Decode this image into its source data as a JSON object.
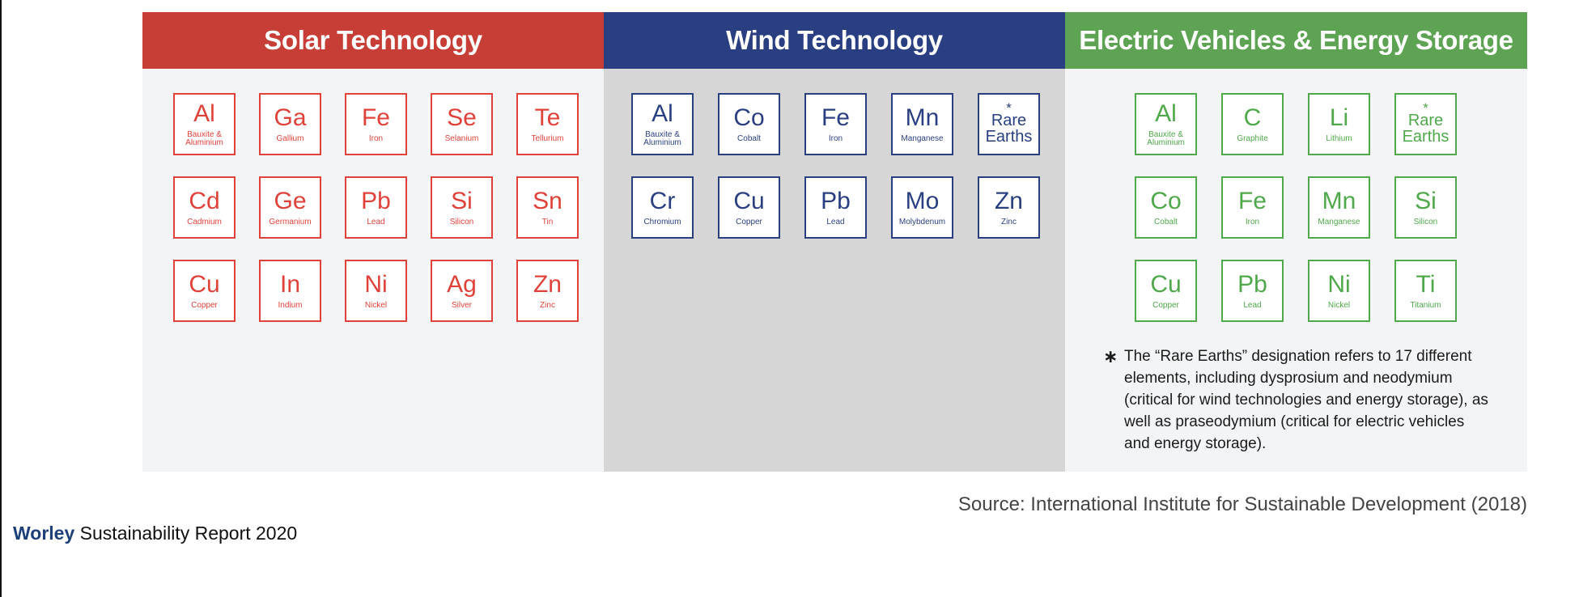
{
  "panels": {
    "solar": {
      "title": "Solar Technology",
      "color": "#c73e36",
      "elements": [
        {
          "symbol": "Al",
          "name": "Bauxite & Aluminium"
        },
        {
          "symbol": "Ga",
          "name": "Gallium"
        },
        {
          "symbol": "Fe",
          "name": "Iron"
        },
        {
          "symbol": "Se",
          "name": "Selanium"
        },
        {
          "symbol": "Te",
          "name": "Tellurium"
        },
        {
          "symbol": "Cd",
          "name": "Cadmium"
        },
        {
          "symbol": "Ge",
          "name": "Germanium"
        },
        {
          "symbol": "Pb",
          "name": "Lead"
        },
        {
          "symbol": "Si",
          "name": "Silicon"
        },
        {
          "symbol": "Sn",
          "name": "Tin"
        },
        {
          "symbol": "Cu",
          "name": "Copper"
        },
        {
          "symbol": "In",
          "name": "Indium"
        },
        {
          "symbol": "Ni",
          "name": "Nickel"
        },
        {
          "symbol": "Ag",
          "name": "Silver"
        },
        {
          "symbol": "Zn",
          "name": "Zinc"
        }
      ]
    },
    "wind": {
      "title": "Wind Technology",
      "color": "#2a3f82",
      "elements": [
        {
          "symbol": "Al",
          "name": "Bauxite & Aluminium"
        },
        {
          "symbol": "Co",
          "name": "Cobalt"
        },
        {
          "symbol": "Fe",
          "name": "Iron"
        },
        {
          "symbol": "Mn",
          "name": "Manganese"
        },
        {
          "symbol": "Rare Earths",
          "name": "",
          "rare": true
        },
        {
          "symbol": "Cr",
          "name": "Chromium"
        },
        {
          "symbol": "Cu",
          "name": "Copper"
        },
        {
          "symbol": "Pb",
          "name": "Lead"
        },
        {
          "symbol": "Mo",
          "name": "Molybdenum"
        },
        {
          "symbol": "Zn",
          "name": "Zinc"
        }
      ]
    },
    "ev": {
      "title": "Electric Vehicles & Energy Storage",
      "color": "#5ea353",
      "elements": [
        {
          "symbol": "Al",
          "name": "Bauxite & Aluminium"
        },
        {
          "symbol": "C",
          "name": "Graphite"
        },
        {
          "symbol": "Li",
          "name": "Lithium"
        },
        {
          "symbol": "Rare Earths",
          "name": "",
          "rare": true
        },
        {
          "symbol": "Co",
          "name": "Cobalt"
        },
        {
          "symbol": "Fe",
          "name": "Iron"
        },
        {
          "symbol": "Mn",
          "name": "Manganese"
        },
        {
          "symbol": "Si",
          "name": "Silicon"
        },
        {
          "symbol": "Cu",
          "name": "Copper"
        },
        {
          "symbol": "Pb",
          "name": "Lead"
        },
        {
          "symbol": "Ni",
          "name": "Nickel"
        },
        {
          "symbol": "Ti",
          "name": "Titanium"
        }
      ],
      "note_marker": "∗",
      "note": "The “Rare Earths” designation refers to 17 different elements, including dysprosium and neodymium (critical for wind technologies and energy storage), as well as praseodymium (critical for electric vehicles and energy storage)."
    }
  },
  "rare_marker": "*",
  "source": "Source: International Institute for Sustainable Development (2018)",
  "footer": {
    "brand": "Worley",
    "report": "Sustainability Report 2020"
  }
}
